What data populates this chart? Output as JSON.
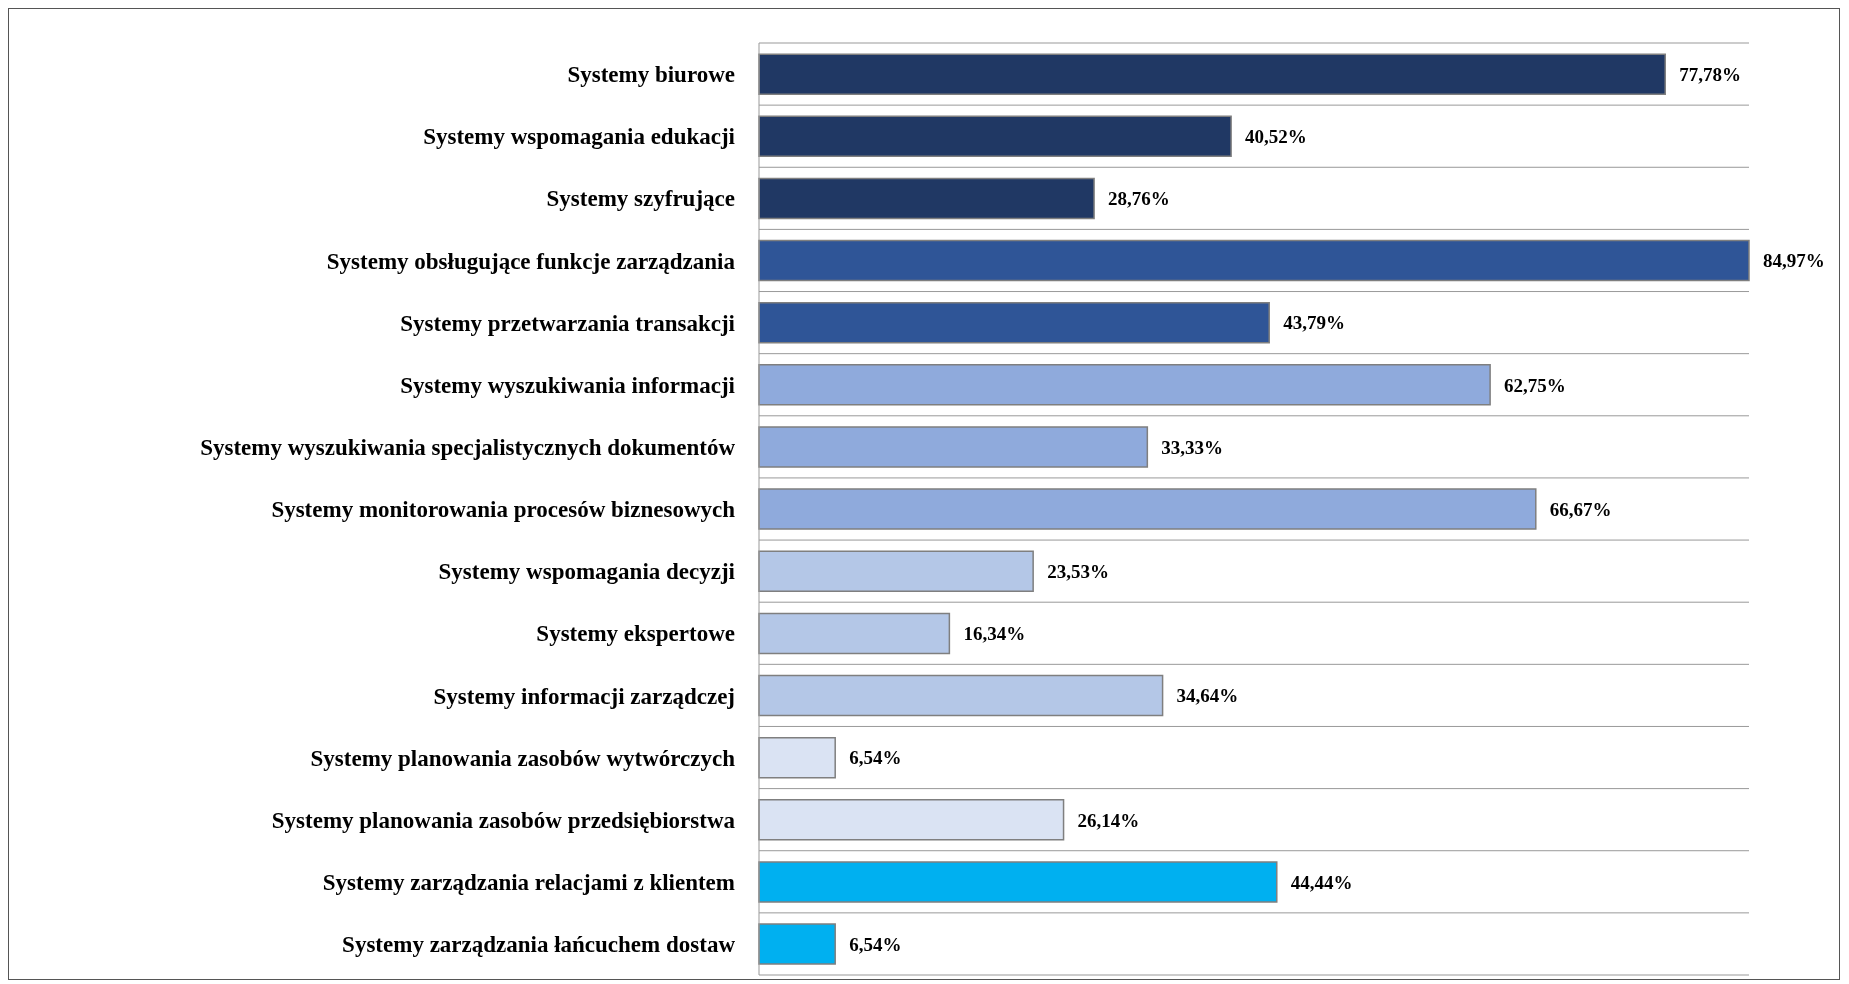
{
  "chart_data": {
    "type": "bar",
    "orientation": "horizontal",
    "grid": "y",
    "categories": [
      "Systemy biurowe",
      "Systemy wspomagania edukacji",
      "Systemy szyfrujące",
      "Systemy obsługujące funkcje zarządzania",
      "Systemy przetwarzania transakcji",
      "Systemy wyszukiwania informacji",
      "Systemy wyszukiwania specjalistycznych dokumentów",
      "Systemy monitorowania procesów biznesowych",
      "Systemy wspomagania decyzji",
      "Systemy ekspertowe",
      "Systemy informacji zarządczej",
      "Systemy planowania zasobów wytwórczych",
      "Systemy planowania zasobów przedsiębiorstwa",
      "Systemy zarządzania relacjami z klientem",
      "Systemy zarządzania łańcuchem dostaw"
    ],
    "values": [
      77.78,
      40.52,
      28.76,
      84.97,
      43.79,
      62.75,
      33.33,
      66.67,
      23.53,
      16.34,
      34.64,
      6.54,
      26.14,
      44.44,
      6.54
    ],
    "value_labels": [
      "77,78%",
      "40,52%",
      "28,76%",
      "84,97%",
      "43,79%",
      "62,75%",
      "33,33%",
      "66,67%",
      "23,53%",
      "16,34%",
      "34,64%",
      "6,54%",
      "26,14%",
      "44,44%",
      "6,54%"
    ],
    "colors": [
      "#203864",
      "#203864",
      "#203864",
      "#2f5597",
      "#2f5597",
      "#8faadc",
      "#8faadc",
      "#8faadc",
      "#b4c7e7",
      "#b4c7e7",
      "#b4c7e7",
      "#dae3f3",
      "#dae3f3",
      "#00b0f0",
      "#00b0f0"
    ]
  }
}
